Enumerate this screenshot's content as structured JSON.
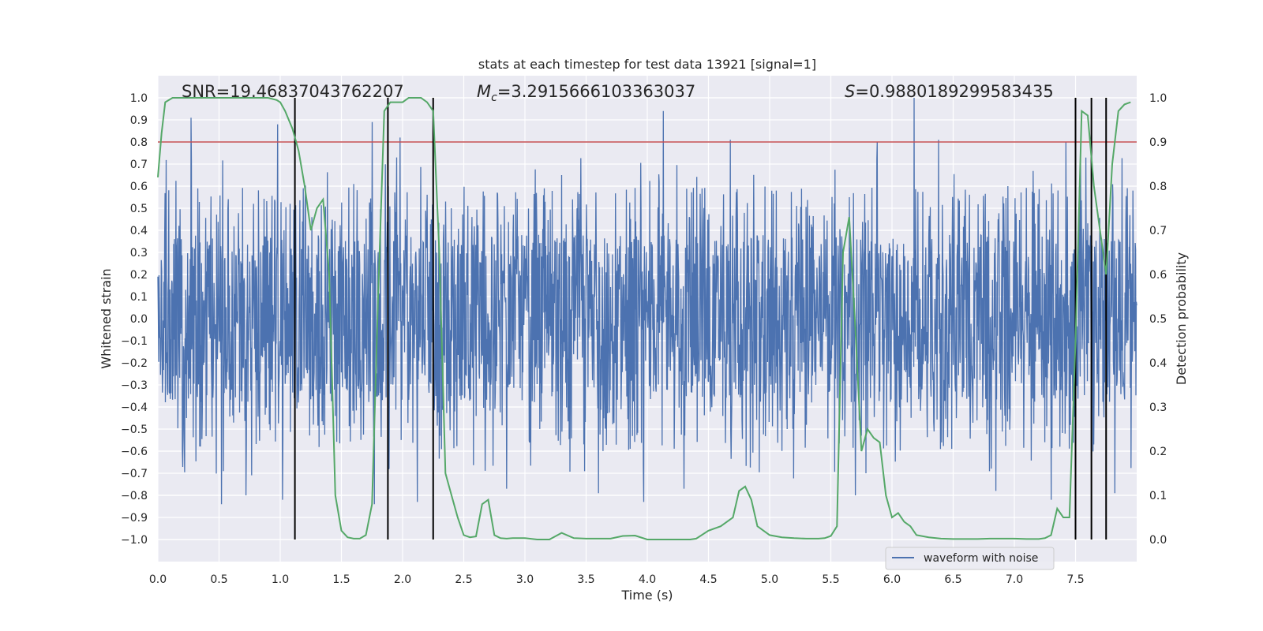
{
  "chart_data": {
    "type": "line",
    "title": "stats at each timestep for test data 13921 [signal=1]",
    "xlabel": "Time (s)",
    "ylabel_left": "Whitened strain",
    "ylabel_right": "Detection probability",
    "xlim": [
      0.0,
      8.0
    ],
    "ylim_left": [
      -1.1,
      1.1
    ],
    "ylim_right": [
      -0.05,
      1.05
    ],
    "x_ticks": [
      0.0,
      0.5,
      1.0,
      1.5,
      2.0,
      2.5,
      3.0,
      3.5,
      4.0,
      4.5,
      5.0,
      5.5,
      6.0,
      6.5,
      7.0,
      7.5
    ],
    "x_tick_labels": [
      "0.0",
      "0.5",
      "1.0",
      "1.5",
      "2.0",
      "2.5",
      "3.0",
      "3.5",
      "4.0",
      "4.5",
      "5.0",
      "5.5",
      "6.0",
      "6.5",
      "7.0",
      "7.5"
    ],
    "y_left_ticks": [
      1.0,
      0.9,
      0.8,
      0.7,
      0.6,
      0.5,
      0.4,
      0.3,
      0.2,
      0.1,
      0.0,
      -0.1,
      -0.2,
      -0.3,
      -0.4,
      -0.5,
      -0.6,
      -0.7,
      -0.8,
      -0.9,
      -1.0
    ],
    "y_left_tick_labels": [
      "1.0",
      "0.9",
      "0.8",
      "0.7",
      "0.6",
      "0.5",
      "0.4",
      "0.3",
      "0.2",
      "0.1",
      "0.0",
      "−0.1",
      "−0.2",
      "−0.3",
      "−0.4",
      "−0.5",
      "−0.6",
      "−0.7",
      "−0.8",
      "−0.9",
      "−1.0"
    ],
    "y_right_ticks": [
      1.0,
      0.9,
      0.8,
      0.7,
      0.6,
      0.5,
      0.4,
      0.3,
      0.2,
      0.1,
      0.0
    ],
    "y_right_tick_labels": [
      "1.0",
      "0.9",
      "0.8",
      "0.7",
      "0.6",
      "0.5",
      "0.4",
      "0.3",
      "0.2",
      "0.1",
      "0.0"
    ],
    "annotations": {
      "snr_text": "SNR=19.46837043762207",
      "mc_symbol": "M",
      "mc_subscript": "c",
      "mc_value": "=3.2915666103363037",
      "s_symbol": "S",
      "s_value": "=0.9880189299583435"
    },
    "legend": {
      "label": "waveform with noise",
      "position": "lower-right"
    },
    "threshold": {
      "value": 0.9,
      "axis": "right",
      "color": "#c44e52"
    },
    "vertical_markers": [
      1.12,
      1.88,
      2.25,
      7.5,
      7.63,
      7.75
    ],
    "waveform": {
      "name": "waveform with noise",
      "color": "#4c72b0",
      "x_range": [
        0.0,
        8.0
      ],
      "typical_amplitude": [
        -0.4,
        0.4
      ],
      "peaks": [
        [
          0.27,
          0.91
        ],
        [
          0.98,
          0.88
        ],
        [
          1.75,
          0.89
        ],
        [
          1.98,
          0.82
        ],
        [
          4.13,
          0.94
        ],
        [
          4.68,
          0.81
        ],
        [
          6.18,
          1.0
        ],
        [
          6.38,
          0.81
        ],
        [
          5.88,
          0.8
        ],
        [
          7.42,
          0.8
        ],
        [
          1.95,
          0.73
        ],
        [
          1.6,
          0.61
        ],
        [
          3.3,
          0.65
        ],
        [
          5.65,
          0.55
        ]
      ],
      "troughs": [
        [
          0.52,
          -0.84
        ],
        [
          0.72,
          -0.8
        ],
        [
          1.02,
          -0.82
        ],
        [
          1.77,
          -0.84
        ],
        [
          2.12,
          -0.83
        ],
        [
          3.97,
          -0.83
        ],
        [
          5.7,
          -0.8
        ],
        [
          7.3,
          -0.82
        ],
        [
          7.63,
          -1.0
        ],
        [
          7.82,
          -0.79
        ],
        [
          2.85,
          -0.77
        ],
        [
          3.6,
          -0.79
        ],
        [
          4.3,
          -0.77
        ],
        [
          6.85,
          -0.78
        ]
      ]
    },
    "detection_probability": {
      "name": "Detection probability",
      "color": "#55a868",
      "axis": "right",
      "x": [
        0.0,
        0.03,
        0.06,
        0.12,
        0.25,
        0.5,
        0.75,
        0.9,
        0.97,
        1.0,
        1.04,
        1.1,
        1.15,
        1.2,
        1.25,
        1.3,
        1.35,
        1.4,
        1.45,
        1.5,
        1.55,
        1.6,
        1.65,
        1.7,
        1.75,
        1.8,
        1.85,
        1.9,
        1.95,
        2.0,
        2.05,
        2.1,
        2.15,
        2.2,
        2.25,
        2.3,
        2.35,
        2.4,
        2.45,
        2.5,
        2.55,
        2.6,
        2.65,
        2.7,
        2.75,
        2.8,
        2.85,
        2.9,
        3.0,
        3.1,
        3.2,
        3.3,
        3.4,
        3.5,
        3.6,
        3.7,
        3.8,
        3.9,
        4.0,
        4.1,
        4.2,
        4.3,
        4.35,
        4.4,
        4.5,
        4.6,
        4.7,
        4.75,
        4.8,
        4.85,
        4.9,
        5.0,
        5.1,
        5.2,
        5.3,
        5.4,
        5.45,
        5.5,
        5.55,
        5.6,
        5.65,
        5.7,
        5.75,
        5.8,
        5.85,
        5.9,
        5.95,
        6.0,
        6.05,
        6.1,
        6.15,
        6.2,
        6.3,
        6.4,
        6.5,
        6.6,
        6.7,
        6.8,
        6.9,
        7.0,
        7.1,
        7.2,
        7.25,
        7.3,
        7.35,
        7.4,
        7.45,
        7.5,
        7.55,
        7.6,
        7.65,
        7.7,
        7.75,
        7.8,
        7.85,
        7.9,
        7.95
      ],
      "y": [
        0.82,
        0.92,
        0.99,
        1.0,
        1.0,
        1.0,
        1.0,
        1.0,
        0.995,
        0.99,
        0.97,
        0.93,
        0.88,
        0.8,
        0.7,
        0.75,
        0.77,
        0.6,
        0.1,
        0.02,
        0.005,
        0.002,
        0.002,
        0.01,
        0.08,
        0.55,
        0.97,
        0.99,
        0.99,
        0.99,
        1.0,
        1.0,
        1.0,
        0.99,
        0.97,
        0.65,
        0.15,
        0.1,
        0.05,
        0.01,
        0.005,
        0.007,
        0.08,
        0.09,
        0.01,
        0.003,
        0.002,
        0.003,
        0.003,
        0.0,
        0.0,
        0.015,
        0.003,
        0.002,
        0.002,
        0.002,
        0.008,
        0.009,
        0.0,
        0.0,
        0.0,
        0.0,
        0.0,
        0.002,
        0.02,
        0.03,
        0.05,
        0.11,
        0.12,
        0.09,
        0.03,
        0.01,
        0.005,
        0.003,
        0.002,
        0.002,
        0.003,
        0.008,
        0.03,
        0.65,
        0.73,
        0.48,
        0.2,
        0.25,
        0.23,
        0.22,
        0.1,
        0.05,
        0.06,
        0.04,
        0.03,
        0.01,
        0.005,
        0.002,
        0.001,
        0.001,
        0.001,
        0.002,
        0.002,
        0.002,
        0.001,
        0.001,
        0.003,
        0.01,
        0.07,
        0.05,
        0.05,
        0.45,
        0.97,
        0.96,
        0.8,
        0.7,
        0.6,
        0.85,
        0.97,
        0.985,
        0.99
      ]
    }
  }
}
